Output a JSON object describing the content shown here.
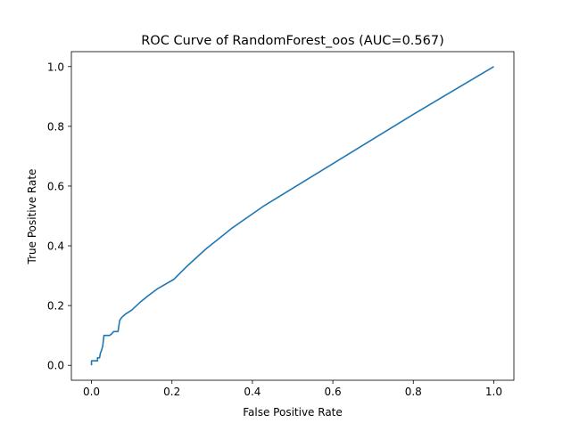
{
  "chart_data": {
    "type": "line",
    "title": "ROC Curve of RandomForest_oos (AUC=0.567)",
    "xlabel": "False Positive Rate",
    "ylabel": "True Positive Rate",
    "xlim": [
      -0.05,
      1.05
    ],
    "ylim": [
      -0.05,
      1.05
    ],
    "xticks": [
      0.0,
      0.2,
      0.4,
      0.6,
      0.8,
      1.0
    ],
    "yticks": [
      0.0,
      0.2,
      0.4,
      0.6,
      0.8,
      1.0
    ],
    "xtick_labels": [
      "0.0",
      "0.2",
      "0.4",
      "0.6",
      "0.8",
      "1.0"
    ],
    "ytick_labels": [
      "0.0",
      "0.2",
      "0.4",
      "0.6",
      "0.8",
      "1.0"
    ],
    "grid": false,
    "series": [
      {
        "color": "#1f77b4",
        "x": [
          0.0,
          0.0,
          0.003,
          0.015,
          0.015,
          0.02,
          0.022,
          0.025,
          0.028,
          0.031,
          0.034,
          0.045,
          0.05,
          0.055,
          0.06,
          0.066,
          0.07,
          0.075,
          0.085,
          0.1,
          0.12,
          0.14,
          0.165,
          0.205,
          0.24,
          0.285,
          0.35,
          0.43,
          0.6,
          0.8,
          1.0
        ],
        "y": [
          0.0,
          0.015,
          0.015,
          0.015,
          0.025,
          0.025,
          0.04,
          0.05,
          0.065,
          0.1,
          0.1,
          0.1,
          0.105,
          0.113,
          0.113,
          0.113,
          0.15,
          0.16,
          0.172,
          0.185,
          0.21,
          0.232,
          0.257,
          0.288,
          0.335,
          0.39,
          0.46,
          0.535,
          0.675,
          0.84,
          1.0
        ]
      }
    ]
  }
}
